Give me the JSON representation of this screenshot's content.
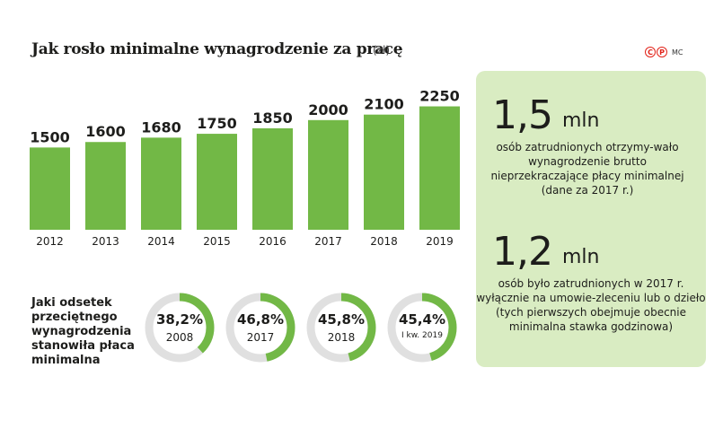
{
  "title": "Jak rosło minimalne wynagrodzenie za pracę",
  "title_unit": "(zł)",
  "logo": {
    "left": "C",
    "right": "P",
    "color": "#e2231a"
  },
  "author": "MC",
  "colors": {
    "bar": "#72b846",
    "ring_bg": "#e0e0e0",
    "panel": "#d9ecc2"
  },
  "chart_data": [
    {
      "type": "bar",
      "title": "Jak rosło minimalne wynagrodzenie za pracę",
      "ylabel": "(zł)",
      "categories": [
        "2012",
        "2013",
        "2014",
        "2015",
        "2016",
        "2017",
        "2018",
        "2019"
      ],
      "values": [
        1500,
        1600,
        1680,
        1750,
        1850,
        2000,
        2100,
        2250
      ],
      "value_labels": [
        "1500",
        "1600",
        "1680",
        "1750",
        "1850",
        "2000",
        "2100",
        "2250"
      ],
      "grid": false,
      "legend": "none"
    },
    {
      "type": "pie",
      "title": "Jaki odsetek przeciętnego wynagrodzenia stanowiła płaca minimalna",
      "categories": [
        "2008",
        "2017",
        "2018",
        "I kw. 2019"
      ],
      "values": [
        38.2,
        46.8,
        45.8,
        45.4
      ],
      "value_labels": [
        "38,2%",
        "46,8%",
        "45,8%",
        "45,4%"
      ]
    }
  ],
  "rings": {
    "label": "Jaki odsetek przeciętnego wynagrodzenia stanowiła płaca minimalna",
    "items": [
      {
        "pct": "38,2%",
        "year": "2008",
        "value": 38.2
      },
      {
        "pct": "46,8%",
        "year": "2017",
        "value": 46.8
      },
      {
        "pct": "45,8%",
        "year": "2018",
        "value": 45.8
      },
      {
        "pct": "45,4%",
        "year": "I kw. 2019",
        "value": 45.4
      }
    ]
  },
  "facts": [
    {
      "number": "1,5",
      "unit": "mln",
      "text": "osób zatrudnionych otrzymy-wało wynagrodzenie brutto nieprzekraczające płacy minimalnej (dane za 2017 r.)"
    },
    {
      "number": "1,2",
      "unit": "mln",
      "text": "osób było zatrudnionych w 2017 r. wyłącznie na umowie-zleceniu lub o dzieło (tych pierwszych obejmuje obecnie minimalna stawka godzinowa)"
    }
  ]
}
